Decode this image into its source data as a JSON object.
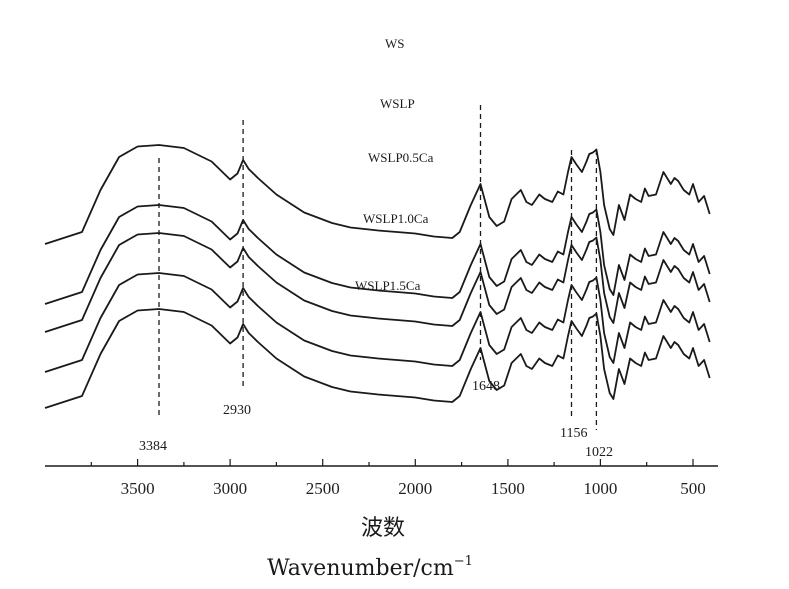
{
  "chart_data": {
    "type": "line",
    "xlabel_cn": "波数",
    "xlabel_en": "Wavenumber/cm",
    "xlabel_sup": "−1",
    "xlim": [
      4000,
      400
    ],
    "xticks": [
      3500,
      3000,
      2500,
      2000,
      1500,
      1000,
      500
    ],
    "grid": false,
    "series": [
      {
        "name": "WS"
      },
      {
        "name": "WSLP"
      },
      {
        "name": "WSLP0.5Ca"
      },
      {
        "name": "WSLP1.0Ca"
      },
      {
        "name": "WSLP1.5Ca"
      }
    ],
    "spectrum_x": [
      4000,
      3800,
      3700,
      3600,
      3500,
      3384,
      3250,
      3100,
      3000,
      2960,
      2930,
      2900,
      2850,
      2750,
      2600,
      2450,
      2350,
      2200,
      2100,
      2000,
      1900,
      1800,
      1760,
      1700,
      1648,
      1600,
      1560,
      1520,
      1480,
      1430,
      1400,
      1370,
      1330,
      1300,
      1260,
      1230,
      1200,
      1175,
      1156,
      1130,
      1100,
      1075,
      1060,
      1040,
      1022,
      1000,
      980,
      950,
      930,
      900,
      870,
      840,
      810,
      780,
      760,
      740,
      700,
      660,
      620,
      600,
      580,
      550,
      520,
      500,
      470,
      440,
      410
    ],
    "spectrum_transmittance": [
      0.88,
      0.8,
      0.52,
      0.3,
      0.23,
      0.22,
      0.24,
      0.33,
      0.45,
      0.41,
      0.32,
      0.38,
      0.44,
      0.55,
      0.67,
      0.74,
      0.77,
      0.79,
      0.8,
      0.81,
      0.83,
      0.84,
      0.8,
      0.62,
      0.48,
      0.7,
      0.76,
      0.73,
      0.58,
      0.52,
      0.6,
      0.62,
      0.55,
      0.58,
      0.6,
      0.53,
      0.55,
      0.4,
      0.3,
      0.35,
      0.4,
      0.33,
      0.28,
      0.27,
      0.25,
      0.4,
      0.62,
      0.78,
      0.82,
      0.62,
      0.72,
      0.55,
      0.58,
      0.6,
      0.51,
      0.56,
      0.55,
      0.4,
      0.48,
      0.44,
      0.46,
      0.52,
      0.55,
      0.48,
      0.6,
      0.56,
      0.68
    ],
    "annotations": [
      {
        "label": "3384",
        "x": 3384
      },
      {
        "label": "2930",
        "x": 2930
      },
      {
        "label": "1648",
        "x": 1648
      },
      {
        "label": "1156",
        "x": 1156
      },
      {
        "label": "1022",
        "x": 1022
      }
    ]
  }
}
